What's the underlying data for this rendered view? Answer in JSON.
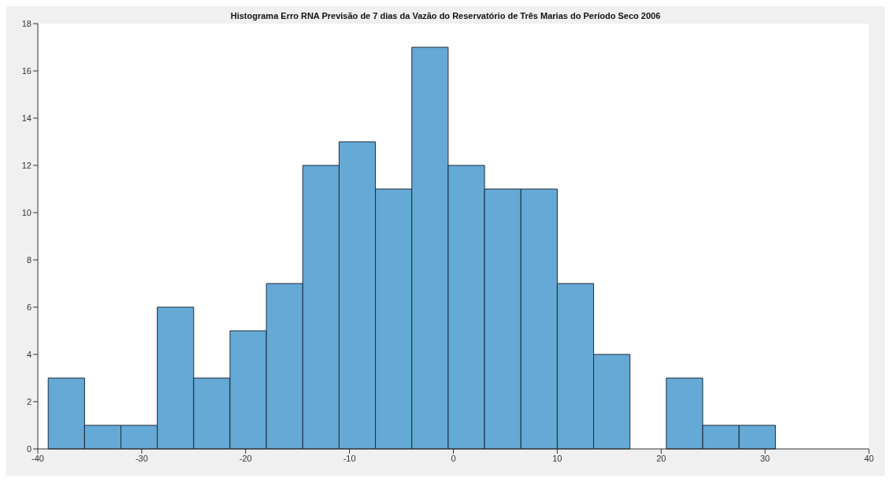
{
  "chart_data": {
    "type": "histogram",
    "title": "Histograma Erro RNA Previsão de 7 dias da Vazão do Reservatório de Três Marias do Período Seco 2006",
    "bins": [
      -39,
      -35.5,
      -32,
      -28.5,
      -25,
      -21.5,
      -18,
      -14.5,
      -11,
      -7.5,
      -4,
      -0.5,
      3,
      6.5,
      10,
      13.5,
      17,
      20.5,
      24,
      27.5,
      31
    ],
    "values": [
      3,
      1,
      1,
      6,
      3,
      5,
      7,
      12,
      13,
      11,
      17,
      12,
      11,
      11,
      7,
      4,
      0,
      3,
      1,
      1
    ],
    "color": "#65a9d7",
    "xlim": [
      -40,
      40
    ],
    "xticks": [
      -40,
      -30,
      -20,
      -10,
      0,
      10,
      20,
      30,
      40
    ],
    "ylim": [
      0,
      18
    ],
    "yticks": [
      0,
      2,
      4,
      6,
      8,
      10,
      12,
      14,
      16,
      18
    ]
  }
}
